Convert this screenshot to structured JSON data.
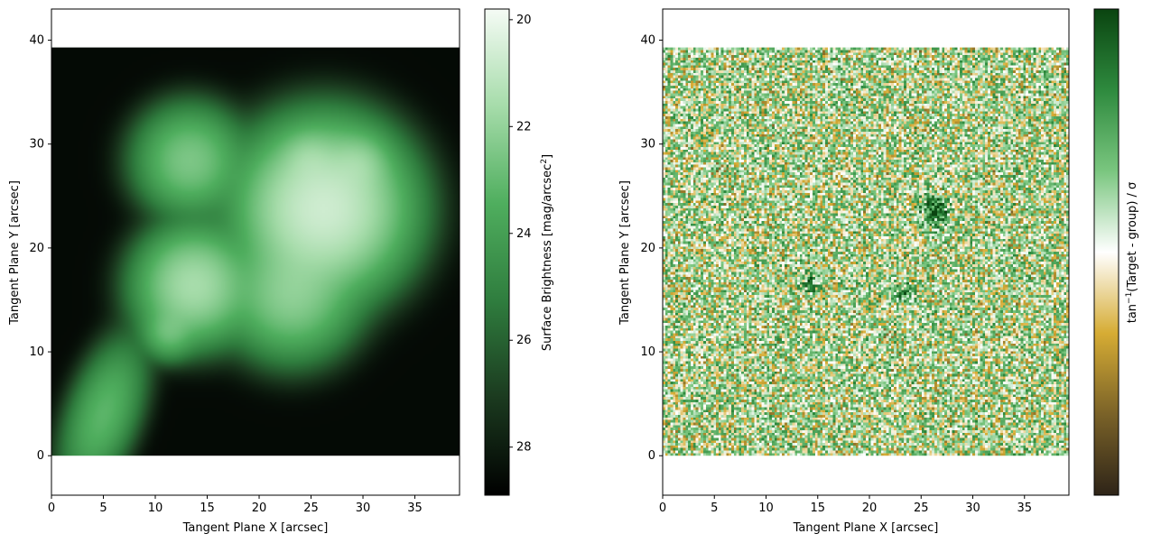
{
  "chart_data": [
    {
      "type": "heatmap",
      "xlabel": "Tangent Plane X [arcsec]",
      "ylabel": "Tangent Plane Y [arcsec]",
      "xlim": [
        0,
        39.3
      ],
      "ylim": [
        -3.8,
        43.0
      ],
      "image_extent": {
        "x": [
          0,
          39.3
        ],
        "y": [
          0,
          39.3
        ]
      },
      "xticks": [
        0,
        5,
        10,
        15,
        20,
        25,
        30,
        35
      ],
      "yticks": [
        0,
        10,
        20,
        30,
        40
      ],
      "background_level": 28.6,
      "sources": [
        {
          "x": 5.0,
          "y": 4.0,
          "peak_mag": 23.2,
          "sigma_major": 3.4,
          "sigma_minor": 1.5,
          "angle_deg": 70
        },
        {
          "x": 11.3,
          "y": 11.9,
          "peak_mag": 23.0,
          "sigma_major": 1.2,
          "sigma_minor": 1.2,
          "angle_deg": 0
        },
        {
          "x": 13.7,
          "y": 16.4,
          "peak_mag": 21.6,
          "sigma_major": 2.4,
          "sigma_minor": 2.4,
          "angle_deg": 0
        },
        {
          "x": 13.3,
          "y": 28.4,
          "peak_mag": 22.5,
          "sigma_major": 2.3,
          "sigma_minor": 2.3,
          "angle_deg": 0
        },
        {
          "x": 23.1,
          "y": 15.5,
          "peak_mag": 22.2,
          "sigma_major": 2.7,
          "sigma_minor": 2.7,
          "angle_deg": 0
        },
        {
          "x": 26.2,
          "y": 23.8,
          "peak_mag": 20.7,
          "sigma_major": 3.4,
          "sigma_minor": 3.4,
          "angle_deg": 0
        },
        {
          "x": 24.8,
          "y": 28.6,
          "peak_mag": 22.8,
          "sigma_major": 1.3,
          "sigma_minor": 1.3,
          "angle_deg": 0
        },
        {
          "x": 29.6,
          "y": 28.1,
          "peak_mag": 22.6,
          "sigma_major": 1.4,
          "sigma_minor": 1.4,
          "angle_deg": 0
        }
      ],
      "colorbar": {
        "label": "Surface Brightness [mag/arcsec",
        "label_sup": "2",
        "label_end": "]",
        "range": [
          28.9,
          19.8
        ],
        "ticks": [
          20,
          22,
          24,
          26,
          28
        ],
        "inverted": true,
        "colors": [
          "#000000",
          "#1b3a1f",
          "#2f7d3e",
          "#4fae5e",
          "#a6dcaa",
          "#f5fbf5"
        ]
      }
    },
    {
      "type": "heatmap",
      "xlabel": "Tangent Plane X [arcsec]",
      "ylabel": "Tangent Plane Y [arcsec]",
      "xlim": [
        0,
        39.3
      ],
      "ylim": [
        -3.8,
        43.0
      ],
      "image_extent": {
        "x": [
          0,
          39.3
        ],
        "y": [
          0,
          39.3
        ]
      },
      "xticks": [
        0,
        5,
        10,
        15,
        20,
        25,
        30,
        35
      ],
      "yticks": [
        0,
        10,
        20,
        30,
        40
      ],
      "pixels_per_side": 160,
      "distribution": "random residual noise, green-biased",
      "features": [
        {
          "x": 26.3,
          "y": 23.6,
          "value": 1.3,
          "radius": 0.9
        },
        {
          "x": 14.2,
          "y": 16.6,
          "value": 0.9,
          "radius": 0.6
        },
        {
          "x": 23.4,
          "y": 15.7,
          "value": 0.8,
          "radius": 0.6
        }
      ],
      "colorbar": {
        "label": "tan",
        "label_sup": "−1",
        "label_end": "(Target - group) / σ",
        "range": [
          -1.57,
          1.57
        ],
        "ticks": [],
        "colors": [
          "#2e2418",
          "#7a6228",
          "#d6ac34",
          "#ffffff",
          "#7ac67f",
          "#2e8a3e",
          "#0a4410"
        ]
      }
    }
  ]
}
